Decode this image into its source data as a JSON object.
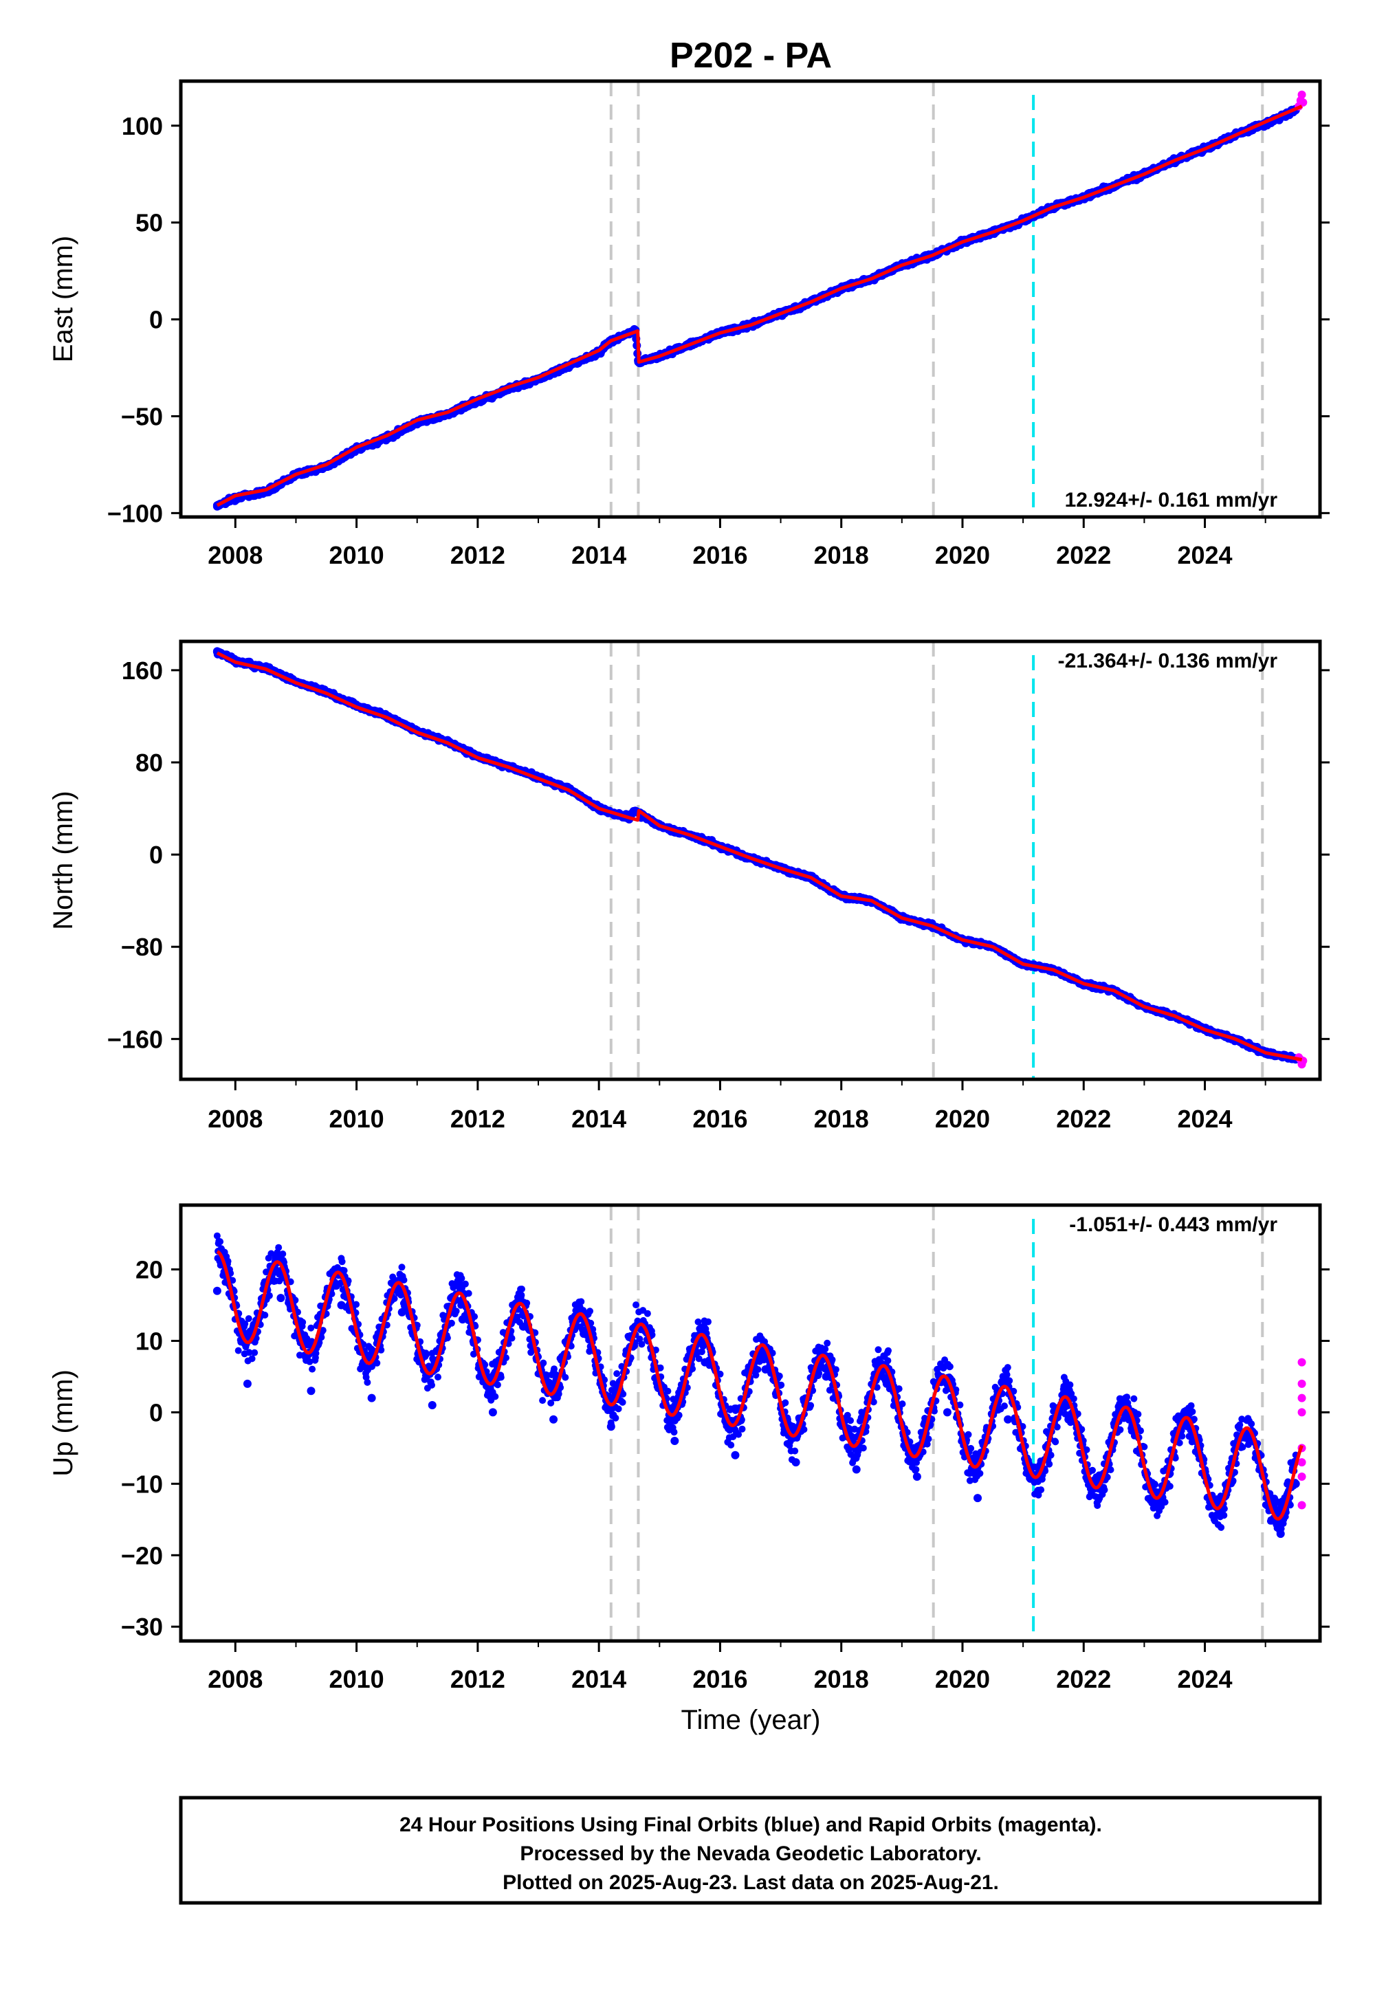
{
  "figure": {
    "title": "P202 - PA",
    "xlabel": "Time (year)",
    "footer_lines": [
      "24 Hour Positions Using Final Orbits (blue) and Rapid Orbits (magenta).",
      "Processed by the Nevada Geodetic Laboratory.",
      "Plotted on 2025-Aug-23. Last data on 2025-Aug-21."
    ],
    "colors": {
      "final_orbits": "#0000ff",
      "rapid_orbits": "#ff00ff",
      "model_fit": "#ff0000",
      "event_line": "#c8c8c8",
      "highlight_event": "#00e5ee"
    }
  },
  "chart_data": [
    {
      "type": "scatter",
      "ylabel": "East (mm)",
      "annotation": "12.924+/- 0.161 mm/yr",
      "xlim": [
        2007.1,
        2025.9
      ],
      "ylim": [
        -102,
        123
      ],
      "xticks": [
        2008,
        2010,
        2012,
        2014,
        2016,
        2018,
        2020,
        2022,
        2024
      ],
      "yticks": [
        -100,
        -50,
        0,
        50,
        100
      ],
      "vlines_gray": [
        2014.2,
        2014.65,
        2019.52,
        2024.95
      ],
      "vline_cyan": 2021.17,
      "series": [
        {
          "label": "Final Orbits",
          "color": "#0000ff",
          "x": [
            2007.7,
            2008.0,
            2008.5,
            2009.0,
            2009.5,
            2010.0,
            2010.5,
            2011.0,
            2011.5,
            2012.0,
            2012.5,
            2013.0,
            2013.5,
            2014.0,
            2014.2,
            2014.6,
            2014.65,
            2015.0,
            2015.5,
            2016.0,
            2016.5,
            2017.0,
            2017.5,
            2018.0,
            2018.5,
            2019.0,
            2019.5,
            2020.0,
            2020.5,
            2021.0,
            2021.5,
            2022.0,
            2022.5,
            2023.0,
            2023.5,
            2024.0,
            2024.5,
            2025.0,
            2025.5
          ],
          "y": [
            -96,
            -92,
            -89,
            -80,
            -76,
            -67,
            -61,
            -53,
            -49,
            -42,
            -36,
            -31,
            -24,
            -17,
            -11,
            -6,
            -22,
            -19,
            -13,
            -7,
            -3,
            3,
            9,
            16,
            21,
            28,
            33,
            40,
            45,
            51,
            58,
            63,
            69,
            75,
            82,
            88,
            95,
            101,
            108
          ]
        },
        {
          "label": "Rapid Orbits",
          "color": "#ff00ff",
          "x": [
            2025.55,
            2025.58,
            2025.6,
            2025.62
          ],
          "y": [
            110,
            113,
            116,
            112
          ]
        }
      ],
      "fit": {
        "x": [
          2007.7,
          2008.0,
          2008.5,
          2009.0,
          2009.5,
          2010.0,
          2010.5,
          2011.0,
          2011.5,
          2012.0,
          2012.5,
          2013.0,
          2013.5,
          2014.0,
          2014.2,
          2014.64,
          2014.66,
          2015.0,
          2015.5,
          2016.0,
          2016.5,
          2017.0,
          2017.5,
          2018.0,
          2018.5,
          2019.0,
          2019.5,
          2020.0,
          2020.5,
          2021.0,
          2021.5,
          2022.0,
          2022.5,
          2023.0,
          2023.5,
          2024.0,
          2024.5,
          2025.0,
          2025.6
        ],
        "y": [
          -96,
          -91,
          -88,
          -80,
          -75,
          -66,
          -60,
          -52,
          -48,
          -41,
          -35,
          -30,
          -23,
          -16,
          -11,
          -6,
          -22,
          -19,
          -13,
          -7,
          -3,
          3,
          9,
          16,
          21,
          28,
          33,
          40,
          45,
          51,
          58,
          63,
          69,
          75,
          82,
          88,
          95,
          102,
          110
        ]
      }
    },
    {
      "type": "scatter",
      "ylabel": "North (mm)",
      "annotation": "-21.364+/- 0.136 mm/yr",
      "xlim": [
        2007.1,
        2025.9
      ],
      "ylim": [
        -195,
        185
      ],
      "xticks": [
        2008,
        2010,
        2012,
        2014,
        2016,
        2018,
        2020,
        2022,
        2024
      ],
      "yticks": [
        160,
        80,
        0,
        -80,
        -160
      ],
      "vlines_gray": [
        2014.2,
        2014.65,
        2019.52,
        2024.95
      ],
      "vline_cyan": 2021.17,
      "series": [
        {
          "label": "Final Orbits",
          "color": "#0000ff",
          "x": [
            2007.7,
            2008.0,
            2008.5,
            2009.0,
            2009.5,
            2010.0,
            2010.5,
            2011.0,
            2011.5,
            2012.0,
            2012.5,
            2013.0,
            2013.5,
            2014.0,
            2014.5,
            2014.6,
            2015.0,
            2015.5,
            2016.0,
            2016.5,
            2017.0,
            2017.5,
            2018.0,
            2018.5,
            2019.0,
            2019.5,
            2020.0,
            2020.5,
            2021.0,
            2021.5,
            2022.0,
            2022.5,
            2023.0,
            2023.5,
            2024.0,
            2024.5,
            2025.0,
            2025.5
          ],
          "y": [
            176,
            168,
            162,
            150,
            141,
            129,
            120,
            107,
            98,
            85,
            77,
            67,
            57,
            40,
            32,
            38,
            25,
            17,
            7,
            -3,
            -12,
            -20,
            -36,
            -40,
            -55,
            -62,
            -74,
            -80,
            -95,
            -100,
            -112,
            -118,
            -132,
            -140,
            -152,
            -160,
            -172,
            -177
          ]
        },
        {
          "label": "Rapid Orbits",
          "color": "#ff00ff",
          "x": [
            2025.55,
            2025.58,
            2025.6,
            2025.62
          ],
          "y": [
            -176,
            -178,
            -182,
            -179
          ]
        }
      ],
      "fit": {
        "x": [
          2007.7,
          2008.0,
          2008.5,
          2009.0,
          2009.5,
          2010.0,
          2010.5,
          2011.0,
          2011.5,
          2012.0,
          2012.5,
          2013.0,
          2013.5,
          2014.0,
          2014.5,
          2014.64,
          2014.66,
          2015.0,
          2015.5,
          2016.0,
          2016.5,
          2017.0,
          2017.5,
          2018.0,
          2018.5,
          2019.0,
          2019.5,
          2020.0,
          2020.5,
          2021.0,
          2021.5,
          2022.0,
          2022.5,
          2023.0,
          2023.5,
          2024.0,
          2024.5,
          2025.0,
          2025.6
        ],
        "y": [
          175,
          167,
          161,
          149,
          140,
          128,
          119,
          106,
          97,
          84,
          76,
          66,
          56,
          40,
          32,
          30,
          38,
          25,
          17,
          7,
          -3,
          -12,
          -20,
          -36,
          -40,
          -55,
          -62,
          -74,
          -80,
          -95,
          -100,
          -112,
          -118,
          -132,
          -140,
          -152,
          -160,
          -172,
          -178
        ]
      }
    },
    {
      "type": "scatter",
      "ylabel": "Up (mm)",
      "annotation": "-1.051+/- 0.443 mm/yr",
      "xlim": [
        2007.1,
        2025.9
      ],
      "ylim": [
        -32,
        29
      ],
      "xticks": [
        2008,
        2010,
        2012,
        2014,
        2016,
        2018,
        2020,
        2022,
        2024
      ],
      "yticks": [
        20,
        10,
        0,
        -10,
        -20,
        -30
      ],
      "vlines_gray": [
        2014.2,
        2014.65,
        2019.52,
        2024.95
      ],
      "vline_cyan": 2021.17,
      "series": [
        {
          "label": "Final Orbits",
          "color": "#0000ff",
          "x": [
            2007.7,
            2008.2,
            2008.75,
            2009.25,
            2009.75,
            2010.25,
            2010.75,
            2011.25,
            2011.75,
            2012.25,
            2012.75,
            2013.25,
            2013.75,
            2014.2,
            2014.6,
            2015.25,
            2015.75,
            2016.25,
            2016.75,
            2017.25,
            2017.75,
            2018.25,
            2018.75,
            2019.25,
            2019.75,
            2020.25,
            2020.75,
            2021.25,
            2021.75,
            2022.25,
            2022.75,
            2023.25,
            2023.75,
            2024.25,
            2024.75,
            2025.25,
            2025.5
          ],
          "y": [
            17,
            4,
            16,
            3,
            15,
            2,
            14,
            1,
            13,
            0,
            12,
            -1,
            11,
            -2,
            12,
            -4,
            7,
            -6,
            6,
            -7,
            5,
            -8,
            4,
            -9,
            0,
            -12,
            -1,
            -11,
            -1,
            -12,
            -1,
            -13,
            -2,
            -14,
            -3,
            -17,
            -10
          ]
        },
        {
          "label": "Rapid Orbits",
          "color": "#ff00ff",
          "x": [
            2025.6,
            2025.6,
            2025.6,
            2025.6,
            2025.6,
            2025.6,
            2025.6,
            2025.6
          ],
          "y": [
            7,
            4,
            2,
            0,
            -5,
            -7,
            -9,
            -13
          ]
        }
      ],
      "fit": {
        "x": [
          2007.7,
          2025.6
        ],
        "y": [
          16.5,
          -9.5
        ]
      }
    }
  ]
}
